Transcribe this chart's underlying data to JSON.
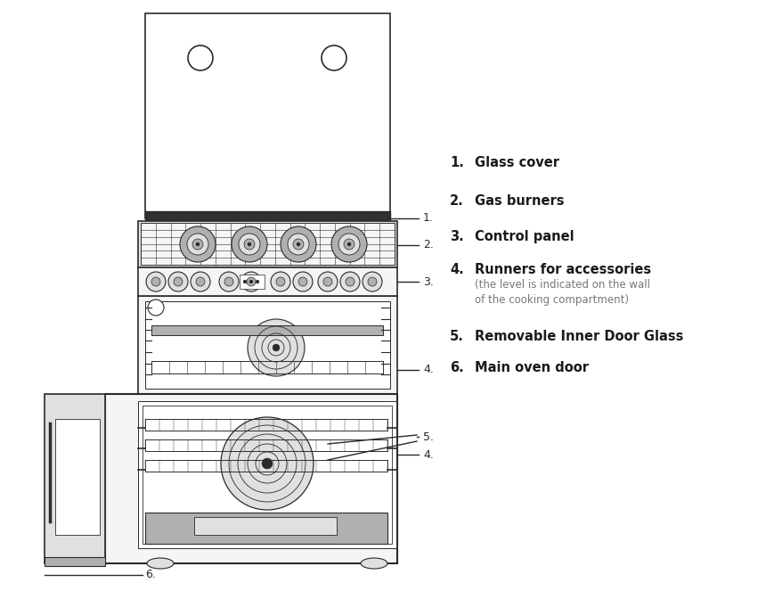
{
  "bg_color": "#ffffff",
  "line_color": "#2a2a2a",
  "fill_lighter": "#f5f5f5",
  "fill_light": "#e0e0e0",
  "fill_mid": "#b0b0b0",
  "fill_dark": "#606060",
  "fill_very_dark": "#303030",
  "legend_items": [
    {
      "num": "1.",
      "bold": "Glass cover",
      "extra": ""
    },
    {
      "num": "2.",
      "bold": "Gas burners",
      "extra": ""
    },
    {
      "num": "3.",
      "bold": "Control panel",
      "extra": ""
    },
    {
      "num": "4.",
      "bold": "Runners for accessories",
      "extra": "(the level is indicated on the wall\nof the cooking compartment)"
    },
    {
      "num": "5.",
      "bold": "Removable Inner Door Glass",
      "extra": ""
    },
    {
      "num": "6.",
      "bold": "Main oven door",
      "extra": ""
    }
  ]
}
